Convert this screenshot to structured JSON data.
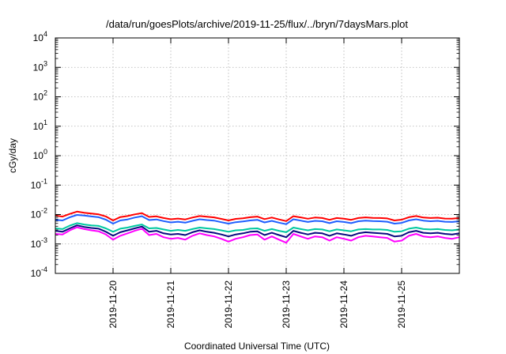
{
  "chart_data": {
    "type": "line",
    "title": "/data/run/goesPlots/archive/2019-11-25/flux/../bryn/7daysMars.plot",
    "xlabel": "Coordinated Universal Time (UTC)",
    "ylabel": "cGy/day",
    "y_scale": "log",
    "ylim": [
      0.0001,
      10000
    ],
    "y_ticks": [
      {
        "value": 0.0001,
        "base": "10",
        "exp": "-4"
      },
      {
        "value": 0.001,
        "base": "10",
        "exp": "-3"
      },
      {
        "value": 0.01,
        "base": "10",
        "exp": "-2"
      },
      {
        "value": 0.1,
        "base": "10",
        "exp": "-1"
      },
      {
        "value": 1,
        "base": "10",
        "exp": "0"
      },
      {
        "value": 10,
        "base": "10",
        "exp": "1"
      },
      {
        "value": 100,
        "base": "10",
        "exp": "2"
      },
      {
        "value": 1000,
        "base": "10",
        "exp": "3"
      },
      {
        "value": 10000,
        "base": "10",
        "exp": "4"
      }
    ],
    "xlim": [
      "2019-11-19T00:00",
      "2019-11-26T00:00"
    ],
    "x_ticks": [
      "2019-11-20",
      "2019-11-21",
      "2019-11-22",
      "2019-11-23",
      "2019-11-24",
      "2019-11-25"
    ],
    "grid": true,
    "x_step_hours": 3,
    "x": [
      "2019-11-19T00:00",
      "2019-11-19T03:00",
      "2019-11-19T06:00",
      "2019-11-19T09:00",
      "2019-11-19T12:00",
      "2019-11-19T15:00",
      "2019-11-19T18:00",
      "2019-11-19T21:00",
      "2019-11-20T00:00",
      "2019-11-20T03:00",
      "2019-11-20T06:00",
      "2019-11-20T09:00",
      "2019-11-20T12:00",
      "2019-11-20T15:00",
      "2019-11-20T18:00",
      "2019-11-20T21:00",
      "2019-11-21T00:00",
      "2019-11-21T03:00",
      "2019-11-21T06:00",
      "2019-11-21T09:00",
      "2019-11-21T12:00",
      "2019-11-21T15:00",
      "2019-11-21T18:00",
      "2019-11-21T21:00",
      "2019-11-22T00:00",
      "2019-11-22T03:00",
      "2019-11-22T06:00",
      "2019-11-22T09:00",
      "2019-11-22T12:00",
      "2019-11-22T15:00",
      "2019-11-22T18:00",
      "2019-11-22T21:00",
      "2019-11-23T00:00",
      "2019-11-23T03:00",
      "2019-11-23T06:00",
      "2019-11-23T09:00",
      "2019-11-23T12:00",
      "2019-11-23T15:00",
      "2019-11-23T18:00",
      "2019-11-23T21:00",
      "2019-11-24T00:00",
      "2019-11-24T03:00",
      "2019-11-24T06:00",
      "2019-11-24T09:00",
      "2019-11-24T12:00",
      "2019-11-24T15:00",
      "2019-11-24T18:00",
      "2019-11-24T21:00",
      "2019-11-25T00:00",
      "2019-11-25T03:00",
      "2019-11-25T06:00",
      "2019-11-25T09:00",
      "2019-11-25T12:00",
      "2019-11-25T15:00",
      "2019-11-25T18:00",
      "2019-11-25T21:00",
      "2019-11-26T00:00"
    ],
    "series": [
      {
        "color": "#ff0000",
        "values": [
          0.0093,
          0.0085,
          0.0105,
          0.0126,
          0.0115,
          0.0108,
          0.0101,
          0.0086,
          0.0063,
          0.0082,
          0.0089,
          0.0101,
          0.0112,
          0.0083,
          0.0087,
          0.0076,
          0.0069,
          0.0073,
          0.0068,
          0.0079,
          0.0089,
          0.0084,
          0.008,
          0.0071,
          0.0063,
          0.0071,
          0.0075,
          0.0081,
          0.0085,
          0.007,
          0.0079,
          0.0068,
          0.006,
          0.0088,
          0.008,
          0.0072,
          0.0079,
          0.0076,
          0.0066,
          0.0076,
          0.0072,
          0.0066,
          0.0076,
          0.008,
          0.0077,
          0.0076,
          0.0074,
          0.0063,
          0.0067,
          0.0081,
          0.0089,
          0.0079,
          0.0076,
          0.0078,
          0.0073,
          0.0072,
          0.0076
        ]
      },
      {
        "color": "#1f5fff",
        "values": [
          0.0066,
          0.0063,
          0.0081,
          0.0097,
          0.0092,
          0.0086,
          0.0081,
          0.0067,
          0.0049,
          0.0063,
          0.0068,
          0.0079,
          0.0088,
          0.0065,
          0.0068,
          0.006,
          0.0054,
          0.0057,
          0.0053,
          0.0061,
          0.0069,
          0.0065,
          0.0062,
          0.0055,
          0.0049,
          0.0055,
          0.0058,
          0.0063,
          0.0066,
          0.0054,
          0.0061,
          0.0053,
          0.0047,
          0.0069,
          0.0062,
          0.0056,
          0.0061,
          0.0059,
          0.0051,
          0.0059,
          0.0056,
          0.0051,
          0.0059,
          0.0062,
          0.006,
          0.0059,
          0.0057,
          0.0049,
          0.0052,
          0.0063,
          0.0069,
          0.0062,
          0.0059,
          0.0061,
          0.0057,
          0.0056,
          0.0059
        ]
      },
      {
        "color": "#00c8a0",
        "values": [
          0.0034,
          0.0032,
          0.0042,
          0.0051,
          0.0046,
          0.0043,
          0.0041,
          0.0034,
          0.0026,
          0.0033,
          0.0036,
          0.0041,
          0.0046,
          0.0034,
          0.0035,
          0.0031,
          0.0028,
          0.003,
          0.0028,
          0.0032,
          0.0036,
          0.0034,
          0.0032,
          0.0029,
          0.0026,
          0.0029,
          0.003,
          0.0033,
          0.0034,
          0.0028,
          0.0032,
          0.0028,
          0.0025,
          0.0036,
          0.0032,
          0.0029,
          0.0032,
          0.0031,
          0.0027,
          0.0031,
          0.0029,
          0.0027,
          0.0031,
          0.0032,
          0.0031,
          0.0031,
          0.003,
          0.0026,
          0.0027,
          0.0033,
          0.0036,
          0.0032,
          0.0031,
          0.0032,
          0.003,
          0.0029,
          0.0031
        ]
      },
      {
        "color": "#0a0a80",
        "values": [
          0.0028,
          0.0026,
          0.0034,
          0.0043,
          0.0038,
          0.0035,
          0.0033,
          0.0026,
          0.0019,
          0.0025,
          0.0029,
          0.0034,
          0.0039,
          0.0026,
          0.0028,
          0.0023,
          0.0021,
          0.0022,
          0.002,
          0.0025,
          0.0029,
          0.0026,
          0.0024,
          0.0021,
          0.0018,
          0.0021,
          0.0023,
          0.0026,
          0.0027,
          0.002,
          0.0024,
          0.002,
          0.0017,
          0.0028,
          0.0024,
          0.0021,
          0.0024,
          0.0023,
          0.0019,
          0.0023,
          0.0021,
          0.0019,
          0.0023,
          0.0025,
          0.0024,
          0.0023,
          0.0022,
          0.0018,
          0.0019,
          0.0025,
          0.0028,
          0.0024,
          0.0023,
          0.0024,
          0.0022,
          0.0021,
          0.0023
        ]
      },
      {
        "color": "#ff00ff",
        "values": [
          0.0022,
          0.0021,
          0.0029,
          0.0037,
          0.0032,
          0.0029,
          0.0027,
          0.0021,
          0.0014,
          0.0019,
          0.0023,
          0.0028,
          0.0033,
          0.002,
          0.0022,
          0.0017,
          0.0015,
          0.0016,
          0.0014,
          0.0019,
          0.0023,
          0.002,
          0.0018,
          0.0015,
          0.0012,
          0.0015,
          0.0017,
          0.002,
          0.0021,
          0.0014,
          0.0018,
          0.0014,
          0.0011,
          0.0022,
          0.0018,
          0.0015,
          0.0018,
          0.0017,
          0.0013,
          0.0017,
          0.0015,
          0.0013,
          0.0017,
          0.0019,
          0.0018,
          0.0017,
          0.0016,
          0.0012,
          0.0013,
          0.0019,
          0.0022,
          0.0018,
          0.0017,
          0.0018,
          0.0016,
          0.0015,
          0.0017
        ]
      }
    ]
  }
}
